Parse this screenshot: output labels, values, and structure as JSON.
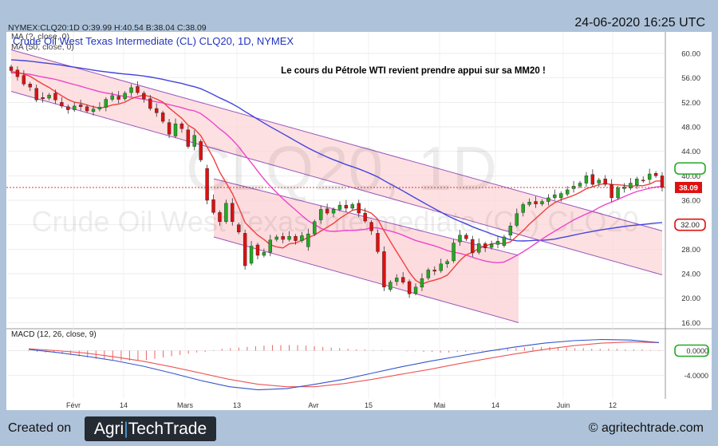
{
  "header": {
    "datetime": "24-06-2020 16:25 UTC"
  },
  "footer": {
    "created_on": "Created on",
    "logo_part1": "Agri",
    "logo_part2": "TechTrade",
    "website": "© agritechtrade.com"
  },
  "colors": {
    "up_candle": "#22aa22",
    "down_candle": "#dd1111",
    "ma20": "#f04040",
    "ma50": "#ee44cc",
    "ma100": "#4444dd",
    "channel_fill": "#fcd6d8",
    "channel_stroke": "#9955bb",
    "macd_line": "#3355cc",
    "signal_line": "#ee5555"
  },
  "chart_data": [
    {
      "type": "candlestick",
      "info_line": "NYMEX:CLQ20:1D O:39.99 H:40.54 B:38.04 C:38.09",
      "title": "Crude Oil West Texas Intermediate (CL) CLQ20, 1D, NYMEX",
      "legend": [
        "MA (?, close, 0)",
        "MA (50, close, 0)"
      ],
      "annotation": "Le cours du Pétrole WTI revient prendre appui sur sa MM20 !",
      "watermark_line1": "CLQ20, 1D",
      "watermark_line2": "Crude Oil West Texas Intermediate (CL) CLQ20",
      "ylim": [
        15,
        63
      ],
      "y_ticks": [
        16,
        20,
        24,
        28,
        32,
        36,
        40,
        44,
        48,
        52,
        56,
        60
      ],
      "x_ticks": [
        "Févr",
        "14",
        "Mars",
        "13",
        "Avr",
        "15",
        "Mai",
        "14",
        "Juin",
        "12"
      ],
      "last_price_label": "38.09",
      "right_marker_labels": [
        "",
        "32.00"
      ],
      "right_marker_values": [
        41.2,
        32.0
      ],
      "candles": [
        [
          57.8,
          57.2
        ],
        [
          57.3,
          56.2
        ],
        [
          56.4,
          55.0
        ],
        [
          55.0,
          54.5
        ],
        [
          54.3,
          52.4
        ],
        [
          52.8,
          52.6
        ],
        [
          52.7,
          53.2
        ],
        [
          53.5,
          52.4
        ],
        [
          52.0,
          51.4
        ],
        [
          51.3,
          50.8
        ],
        [
          50.8,
          51.4
        ],
        [
          51.6,
          51.3
        ],
        [
          51.3,
          50.6
        ],
        [
          50.5,
          50.9
        ],
        [
          50.9,
          51.2
        ],
        [
          51.2,
          52.5
        ],
        [
          52.5,
          53.1
        ],
        [
          53.0,
          52.5
        ],
        [
          52.6,
          53.5
        ],
        [
          53.6,
          54.4
        ],
        [
          54.6,
          53.6
        ],
        [
          53.5,
          52.6
        ],
        [
          52.6,
          51.0
        ],
        [
          51.0,
          50.3
        ],
        [
          50.3,
          48.9
        ],
        [
          48.7,
          46.8
        ],
        [
          46.5,
          48.5
        ],
        [
          48.5,
          47.7
        ],
        [
          47.5,
          44.8
        ],
        [
          44.8,
          46.6
        ],
        [
          45.6,
          42.6
        ],
        [
          41.2,
          36.0
        ],
        [
          36.1,
          34.0
        ],
        [
          34.0,
          32.5
        ],
        [
          32.5,
          35.5
        ],
        [
          35.5,
          32.5
        ],
        [
          32.0,
          30.8
        ],
        [
          30.6,
          25.3
        ],
        [
          25.7,
          28.5
        ],
        [
          28.7,
          27.0
        ],
        [
          27.0,
          27.5
        ],
        [
          27.5,
          29.5
        ],
        [
          29.6,
          30.0
        ],
        [
          30.1,
          29.6
        ],
        [
          29.6,
          30.1
        ],
        [
          30.1,
          29.4
        ],
        [
          29.4,
          30.2
        ],
        [
          28.4,
          30.5
        ],
        [
          30.5,
          32.5
        ],
        [
          32.8,
          34.5
        ],
        [
          34.6,
          33.9
        ],
        [
          33.9,
          34.5
        ],
        [
          34.5,
          35.2
        ],
        [
          35.2,
          34.7
        ],
        [
          34.7,
          35.3
        ],
        [
          35.5,
          33.9
        ],
        [
          33.9,
          32.6
        ],
        [
          32.4,
          31.0
        ],
        [
          30.6,
          27.6
        ],
        [
          27.6,
          21.8
        ],
        [
          21.4,
          22.6
        ],
        [
          22.7,
          23.3
        ],
        [
          23.4,
          22.6
        ],
        [
          22.7,
          20.7
        ],
        [
          20.8,
          21.8
        ],
        [
          21.8,
          23.2
        ],
        [
          23.3,
          24.6
        ],
        [
          24.6,
          24.4
        ],
        [
          24.5,
          25.6
        ],
        [
          25.6,
          26.0
        ],
        [
          26.1,
          29.0
        ],
        [
          29.2,
          30.3
        ],
        [
          30.3,
          29.7
        ],
        [
          29.6,
          27.4
        ],
        [
          27.5,
          28.9
        ],
        [
          28.9,
          28.2
        ],
        [
          28.3,
          28.8
        ],
        [
          28.8,
          29.3
        ],
        [
          28.6,
          30.0
        ],
        [
          30.3,
          31.8
        ],
        [
          31.9,
          33.8
        ],
        [
          34.0,
          35.3
        ],
        [
          35.3,
          35.7
        ],
        [
          35.8,
          35.4
        ],
        [
          35.4,
          35.8
        ],
        [
          35.8,
          36.4
        ],
        [
          36.4,
          36.9
        ],
        [
          36.4,
          37.1
        ],
        [
          37.0,
          37.7
        ],
        [
          37.9,
          38.3
        ],
        [
          38.3,
          38.8
        ],
        [
          38.8,
          40.0
        ],
        [
          40.2,
          38.6
        ],
        [
          38.8,
          39.3
        ],
        [
          39.5,
          38.6
        ],
        [
          38.6,
          36.4
        ],
        [
          36.4,
          38.0
        ],
        [
          37.9,
          38.2
        ],
        [
          38.0,
          38.8
        ],
        [
          38.5,
          39.5
        ],
        [
          39.3,
          39.2
        ],
        [
          39.4,
          40.3
        ],
        [
          40.4,
          40.0
        ],
        [
          39.99,
          38.09
        ]
      ]
    },
    {
      "type": "line",
      "title": "MACD (12, 26, close, 9)",
      "y_ticks": [
        -4.0,
        0.0
      ],
      "y_tick_labels": [
        "-4.0000",
        "0.0000"
      ],
      "ylim": [
        -7.5,
        2.5
      ],
      "series": [
        {
          "values": [
            0.2,
            -0.3,
            -0.9,
            -1.6,
            -2.5,
            -3.6,
            -4.8,
            -5.8,
            -6.3,
            -6.1,
            -5.4,
            -4.6,
            -3.6,
            -2.6,
            -1.7,
            -0.9,
            -0.1,
            0.6,
            1.2,
            1.6,
            1.8,
            1.7,
            1.3
          ]
        },
        {
          "values": [
            0.3,
            0.0,
            -0.4,
            -1.0,
            -1.7,
            -2.6,
            -3.6,
            -4.6,
            -5.4,
            -5.8,
            -5.8,
            -5.3,
            -4.6,
            -3.8,
            -3.0,
            -2.1,
            -1.3,
            -0.5,
            0.2,
            0.8,
            1.2,
            1.4,
            1.3
          ]
        }
      ],
      "histogram": [
        -0.1,
        -0.2,
        -0.3,
        -0.3,
        -0.5,
        -0.7,
        -0.9,
        -1.1,
        -1.3,
        -1.4,
        -1.5,
        -1.6,
        -1.6,
        -1.6,
        -1.5,
        -1.3,
        -1.1,
        -0.9,
        -0.7,
        -0.5,
        -0.3,
        -0.2,
        0.1,
        0.3,
        0.4,
        0.5,
        0.6,
        0.7,
        0.8,
        0.9,
        0.9,
        0.9,
        0.9,
        0.8,
        0.7,
        0.6,
        0.5,
        0.4,
        0.3,
        0.2,
        0.2,
        0.1,
        0.1,
        0.0,
        0.0,
        -0.1,
        -0.1,
        -0.2,
        -0.2,
        -0.3,
        -0.3,
        -0.2,
        -0.2,
        -0.1,
        -0.1,
        0.1,
        0.2,
        0.3,
        0.4,
        0.5,
        0.6,
        0.6,
        0.6,
        0.5,
        0.5,
        0.4,
        0.4,
        0.3,
        0.3,
        0.3,
        0.3,
        0.2,
        0.2,
        0.2,
        0.1,
        0.1
      ]
    }
  ]
}
